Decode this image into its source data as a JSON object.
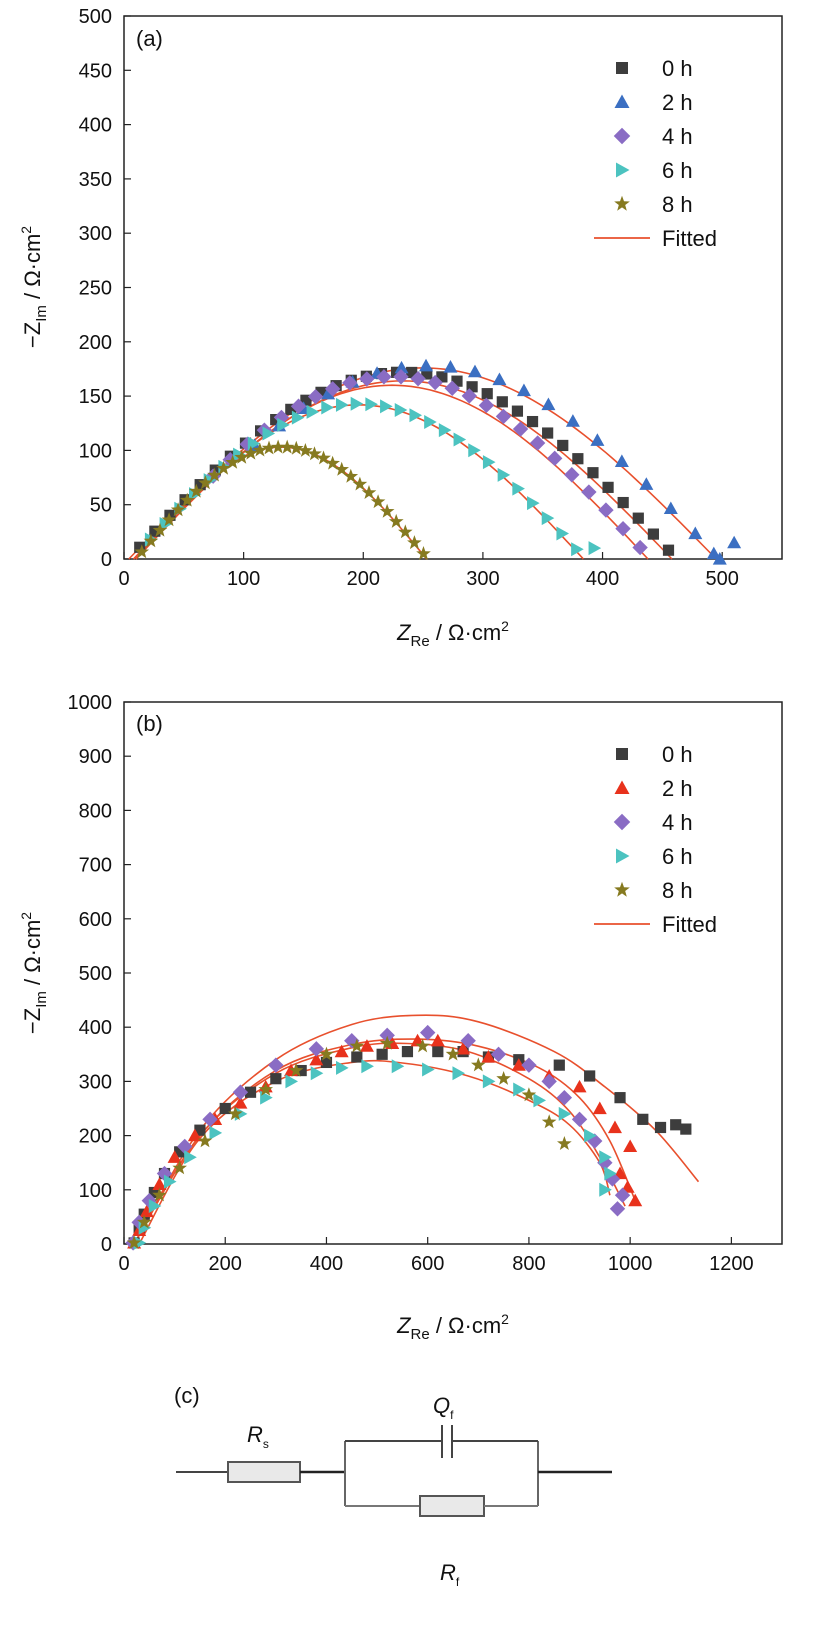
{
  "chart_data": [
    {
      "id": "a",
      "type": "scatter",
      "panel_label": "(a)",
      "xlabel": {
        "main": "Z",
        "sub": "Re",
        "unit": " / Ω·cm",
        "sup": "2"
      },
      "ylabel": {
        "main": "−Z",
        "sub": "Im",
        "unit": " / Ω·cm",
        "sup": "2"
      },
      "xlim": [
        0,
        550
      ],
      "ylim": [
        0,
        500
      ],
      "xticks": [
        0,
        100,
        200,
        300,
        400,
        500
      ],
      "yticks": [
        0,
        50,
        100,
        150,
        200,
        250,
        300,
        350,
        400,
        450,
        500
      ],
      "legend_position": "top-right",
      "legend": [
        {
          "label": "0 h",
          "marker": "square",
          "color": "#3d3d3d"
        },
        {
          "label": "2 h",
          "marker": "triangle-up",
          "color": "#3b6fc2"
        },
        {
          "label": "4 h",
          "marker": "diamond",
          "color": "#8a6cc4"
        },
        {
          "label": "6 h",
          "marker": "triangle-right",
          "color": "#4cc3c0"
        },
        {
          "label": "8 h",
          "marker": "star",
          "color": "#867a20"
        },
        {
          "label": "Fitted",
          "marker": "line",
          "color": "#e8502d"
        }
      ],
      "series": [
        {
          "name": "0 h",
          "arc": [
            4,
            462,
            172
          ],
          "t_range": [
            0.02,
            0.985
          ],
          "n": 36
        },
        {
          "name": "2 h",
          "arc": [
            12,
            498,
            178
          ],
          "t_range": [
            0.2,
            1.0
          ],
          "n": 20,
          "extra": [
            [
              493,
              5
            ],
            [
              510,
              15
            ]
          ]
        },
        {
          "name": "4 h",
          "arc": [
            10,
            440,
            168
          ],
          "t_range": [
            0.15,
            0.98
          ],
          "n": 26
        },
        {
          "name": "6 h",
          "arc": [
            7,
            386,
            143
          ],
          "t_range": [
            0.04,
            0.98
          ],
          "n": 30,
          "extra": [
            [
              393,
              10
            ]
          ]
        },
        {
          "name": "8 h",
          "arc": [
            10,
            254,
            103
          ],
          "t_range": [
            0.02,
            0.985
          ],
          "n": 32
        }
      ],
      "fitted": [
        [
          4,
          495,
          176
        ],
        [
          8,
          458,
          164
        ],
        [
          10,
          438,
          160
        ],
        [
          8,
          384,
          142
        ],
        [
          10,
          253,
          103
        ]
      ]
    },
    {
      "id": "b",
      "type": "scatter",
      "panel_label": "(b)",
      "xlabel": {
        "main": "Z",
        "sub": "Re",
        "unit": " / Ω·cm",
        "sup": "2"
      },
      "ylabel": {
        "main": "−Z",
        "sub": "Im",
        "unit": " / Ω·cm",
        "sup": "2"
      },
      "xlim": [
        0,
        1300
      ],
      "ylim": [
        0,
        1000
      ],
      "xticks": [
        0,
        200,
        400,
        600,
        800,
        1000,
        1200
      ],
      "yticks": [
        0,
        100,
        200,
        300,
        400,
        500,
        600,
        700,
        800,
        900,
        1000
      ],
      "legend_position": "top-right",
      "legend": [
        {
          "label": "0 h",
          "marker": "square",
          "color": "#3d3d3d"
        },
        {
          "label": "2 h",
          "marker": "triangle-up",
          "color": "#e8321c"
        },
        {
          "label": "4 h",
          "marker": "diamond",
          "color": "#8a6cc4"
        },
        {
          "label": "6 h",
          "marker": "triangle-right",
          "color": "#4cc3c0"
        },
        {
          "label": "8 h",
          "marker": "star",
          "color": "#867a20"
        }
      ],
      "fitted_legend": {
        "label": "Fitted",
        "color": "#e8502d"
      },
      "series": [
        {
          "name": "0 h",
          "points": [
            [
              20,
              2
            ],
            [
              30,
              30
            ],
            [
              40,
              55
            ],
            [
              60,
              95
            ],
            [
              80,
              130
            ],
            [
              110,
              170
            ],
            [
              150,
              210
            ],
            [
              200,
              250
            ],
            [
              250,
              280
            ],
            [
              300,
              305
            ],
            [
              350,
              320
            ],
            [
              400,
              335
            ],
            [
              460,
              345
            ],
            [
              510,
              350
            ],
            [
              560,
              355
            ],
            [
              620,
              355
            ],
            [
              670,
              355
            ],
            [
              720,
              345
            ],
            [
              780,
              340
            ],
            [
              860,
              330
            ],
            [
              920,
              310
            ],
            [
              980,
              270
            ],
            [
              1025,
              230
            ],
            [
              1060,
              215
            ],
            [
              1090,
              220
            ],
            [
              1110,
              212
            ]
          ]
        },
        {
          "name": "2 h",
          "points": [
            [
              20,
              2
            ],
            [
              30,
              25
            ],
            [
              45,
              60
            ],
            [
              70,
              110
            ],
            [
              100,
              160
            ],
            [
              140,
              200
            ],
            [
              180,
              230
            ],
            [
              230,
              260
            ],
            [
              280,
              290
            ],
            [
              330,
              320
            ],
            [
              380,
              340
            ],
            [
              430,
              355
            ],
            [
              480,
              365
            ],
            [
              530,
              370
            ],
            [
              580,
              375
            ],
            [
              620,
              375
            ],
            [
              670,
              360
            ],
            [
              720,
              345
            ],
            [
              780,
              330
            ],
            [
              840,
              310
            ],
            [
              900,
              290
            ],
            [
              940,
              250
            ],
            [
              970,
              215
            ],
            [
              1000,
              180
            ],
            [
              980,
              130
            ],
            [
              995,
              105
            ],
            [
              1010,
              80
            ]
          ]
        },
        {
          "name": "4 h",
          "points": [
            [
              18,
              2
            ],
            [
              30,
              40
            ],
            [
              50,
              80
            ],
            [
              80,
              130
            ],
            [
              120,
              180
            ],
            [
              170,
              230
            ],
            [
              230,
              280
            ],
            [
              300,
              330
            ],
            [
              380,
              360
            ],
            [
              450,
              375
            ],
            [
              520,
              385
            ],
            [
              600,
              390
            ],
            [
              680,
              375
            ],
            [
              740,
              350
            ],
            [
              800,
              330
            ],
            [
              840,
              300
            ],
            [
              870,
              270
            ],
            [
              900,
              230
            ],
            [
              930,
              190
            ],
            [
              950,
              150
            ],
            [
              965,
              120
            ],
            [
              985,
              90
            ],
            [
              975,
              65
            ]
          ]
        },
        {
          "name": "6 h",
          "points": [
            [
              30,
              2
            ],
            [
              40,
              30
            ],
            [
              60,
              70
            ],
            [
              90,
              115
            ],
            [
              130,
              160
            ],
            [
              180,
              205
            ],
            [
              230,
              240
            ],
            [
              280,
              270
            ],
            [
              330,
              300
            ],
            [
              380,
              315
            ],
            [
              430,
              325
            ],
            [
              480,
              328
            ],
            [
              540,
              328
            ],
            [
              600,
              322
            ],
            [
              660,
              315
            ],
            [
              720,
              300
            ],
            [
              780,
              285
            ],
            [
              820,
              265
            ],
            [
              870,
              240
            ],
            [
              920,
              200
            ],
            [
              950,
              160
            ],
            [
              960,
              130
            ],
            [
              950,
              100
            ]
          ]
        },
        {
          "name": "8 h",
          "points": [
            [
              20,
              2
            ],
            [
              40,
              40
            ],
            [
              70,
              90
            ],
            [
              110,
              140
            ],
            [
              160,
              190
            ],
            [
              220,
              240
            ],
            [
              280,
              285
            ],
            [
              340,
              320
            ],
            [
              400,
              350
            ],
            [
              460,
              365
            ],
            [
              520,
              370
            ],
            [
              590,
              365
            ],
            [
              650,
              350
            ],
            [
              700,
              330
            ],
            [
              750,
              305
            ],
            [
              800,
              275
            ],
            [
              840,
              225
            ],
            [
              870,
              185
            ]
          ]
        }
      ],
      "fitted": [
        {
          "pts": [
            [
              20,
              0
            ],
            [
              150,
              210
            ],
            [
              300,
              340
            ],
            [
              450,
              405
            ],
            [
              580,
              422
            ],
            [
              700,
              410
            ],
            [
              850,
              355
            ],
            [
              950,
              290
            ],
            [
              1050,
              210
            ],
            [
              1135,
              115
            ]
          ]
        },
        {
          "pts": [
            [
              20,
              0
            ],
            [
              150,
              200
            ],
            [
              300,
              320
            ],
            [
              450,
              368
            ],
            [
              580,
              378
            ],
            [
              700,
              365
            ],
            [
              820,
              325
            ],
            [
              900,
              270
            ],
            [
              960,
              190
            ],
            [
              1010,
              80
            ]
          ]
        },
        {
          "pts": [
            [
              20,
              0
            ],
            [
              150,
              200
            ],
            [
              300,
              315
            ],
            [
              450,
              362
            ],
            [
              560,
              370
            ],
            [
              680,
              355
            ],
            [
              800,
              305
            ],
            [
              880,
              245
            ],
            [
              940,
              160
            ],
            [
              990,
              70
            ]
          ]
        },
        {
          "pts": [
            [
              30,
              0
            ],
            [
              150,
              195
            ],
            [
              300,
              300
            ],
            [
              450,
              335
            ],
            [
              550,
              334
            ],
            [
              680,
              310
            ],
            [
              800,
              265
            ],
            [
              880,
              220
            ],
            [
              940,
              150
            ],
            [
              960,
              90
            ]
          ]
        }
      ]
    }
  ],
  "circuit": {
    "panel_label": "(c)",
    "rs": {
      "main": "R",
      "sub": "s"
    },
    "qf": {
      "main": "Q",
      "sub": "f"
    },
    "rf": {
      "main": "R",
      "sub": "f"
    }
  }
}
